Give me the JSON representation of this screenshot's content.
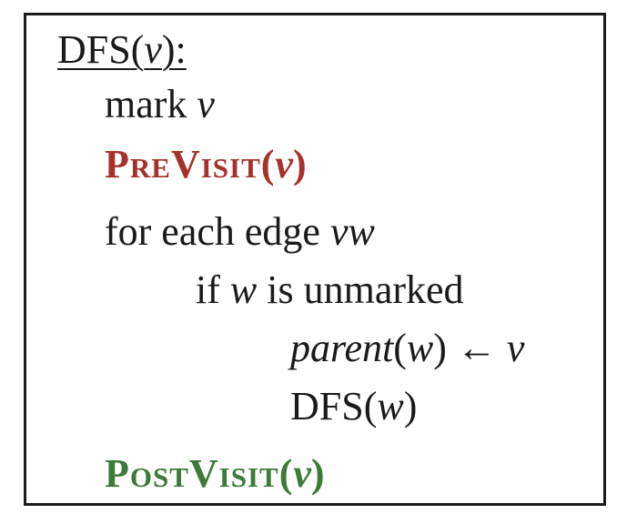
{
  "algorithm": {
    "header": {
      "name": "DFS",
      "open": "(",
      "param": "v",
      "close": "):"
    },
    "mark_line": {
      "keyword": "mark ",
      "var": "v"
    },
    "previsit": {
      "name": "PreVisit",
      "open": "(",
      "param": "v",
      "close": ")",
      "color": "#a6312b"
    },
    "for_line": {
      "text": "for each edge ",
      "var": "vw"
    },
    "if_line": {
      "keyword": "if ",
      "var": "w",
      "rest": " is unmarked"
    },
    "assign_line": {
      "func": "parent",
      "open": "(",
      "arg": "w",
      "close": ")",
      "arrow": " ← ",
      "value": "v"
    },
    "recurse_line": {
      "name": "DFS",
      "open": "(",
      "arg": "w",
      "close": ")"
    },
    "postvisit": {
      "name": "PostVisit",
      "open": "(",
      "param": "v",
      "close": ")",
      "color": "#3b7a37"
    }
  }
}
